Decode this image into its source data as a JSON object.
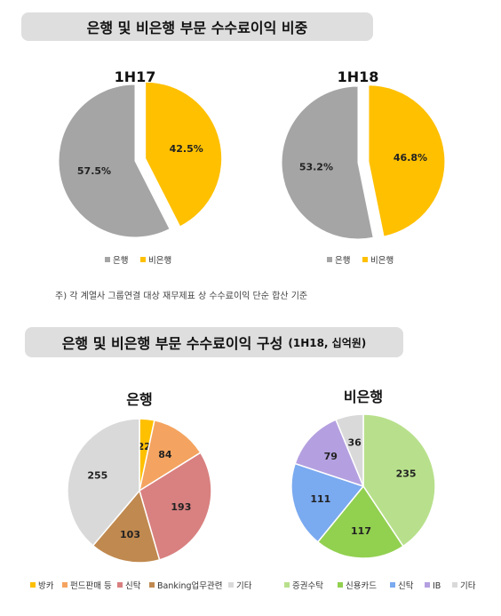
{
  "banner_top": "은행 및 비은행 부문 수수료이익 비중",
  "banner_bottom": {
    "main": "은행 및 비은행 부문 수수료이익 구성",
    "sub": "(1H18, 십억원)"
  },
  "note": "주) 각 계열사 그룹연결 대상 재무제표 상 수수료이익 단순 합산 기준",
  "chart_data": [
    {
      "type": "pie",
      "title": "1H17",
      "slices": [
        {
          "name": "비은행",
          "value": 42.5,
          "label": "42.5%",
          "color": "#ffc000",
          "exploded": true
        },
        {
          "name": "은행",
          "value": 57.5,
          "label": "57.5%",
          "color": "#a5a5a5",
          "exploded": false
        }
      ],
      "legend": [
        {
          "name": "은행",
          "color": "#a5a5a5"
        },
        {
          "name": "비은행",
          "color": "#ffc000"
        }
      ],
      "legend_position": "bottom"
    },
    {
      "type": "pie",
      "title": "1H18",
      "slices": [
        {
          "name": "비은행",
          "value": 46.8,
          "label": "46.8%",
          "color": "#ffc000",
          "exploded": true
        },
        {
          "name": "은행",
          "value": 53.2,
          "label": "53.2%",
          "color": "#a5a5a5",
          "exploded": false
        }
      ],
      "legend": [
        {
          "name": "은행",
          "color": "#a5a5a5"
        },
        {
          "name": "비은행",
          "color": "#ffc000"
        }
      ],
      "legend_position": "bottom"
    },
    {
      "type": "pie",
      "title": "은행",
      "slices": [
        {
          "name": "방카",
          "value": 22,
          "label": "22",
          "color": "#ffc000"
        },
        {
          "name": "펀드판매 등",
          "value": 84,
          "label": "84",
          "color": "#f4a460"
        },
        {
          "name": "신탁",
          "value": 193,
          "label": "193",
          "color": "#d98080"
        },
        {
          "name": "Banking업무관련",
          "value": 103,
          "label": "103",
          "color": "#c0894f"
        },
        {
          "name": "기타",
          "value": 255,
          "label": "255",
          "color": "#d9d9d9"
        }
      ],
      "legend_position": "bottom"
    },
    {
      "type": "pie",
      "title": "비은행",
      "slices": [
        {
          "name": "증권수탁",
          "value": 235,
          "label": "235",
          "color": "#b8e08c"
        },
        {
          "name": "신용카드",
          "value": 117,
          "label": "117",
          "color": "#92d050"
        },
        {
          "name": "신탁",
          "value": 111,
          "label": "111",
          "color": "#7aaaf0"
        },
        {
          "name": "IB",
          "value": 79,
          "label": "79",
          "color": "#b4a0e0"
        },
        {
          "name": "기타",
          "value": 36,
          "label": "36",
          "color": "#d9d9d9"
        }
      ],
      "legend_position": "bottom"
    }
  ]
}
